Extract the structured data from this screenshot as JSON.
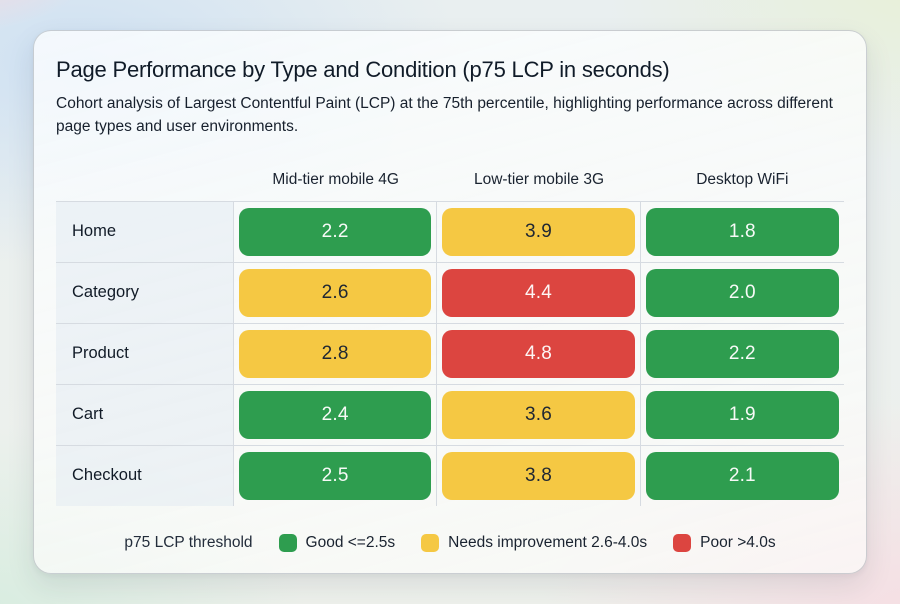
{
  "card": {
    "title": "Page Performance by Type and Condition (p75 LCP in seconds)",
    "subtitle": "Cohort analysis of Largest Contentful Paint (LCP) at the 75th percentile, highlighting performance across different page types and user environments."
  },
  "table": {
    "columns": [
      "Mid-tier mobile 4G",
      "Low-tier mobile 3G",
      "Desktop WiFi"
    ],
    "rows": [
      {
        "label": "Home",
        "values": [
          {
            "value": "2.2",
            "status": "good"
          },
          {
            "value": "3.9",
            "status": "warn"
          },
          {
            "value": "1.8",
            "status": "good"
          }
        ]
      },
      {
        "label": "Category",
        "values": [
          {
            "value": "2.6",
            "status": "warn"
          },
          {
            "value": "4.4",
            "status": "poor"
          },
          {
            "value": "2.0",
            "status": "good"
          }
        ]
      },
      {
        "label": "Product",
        "values": [
          {
            "value": "2.8",
            "status": "warn"
          },
          {
            "value": "4.8",
            "status": "poor"
          },
          {
            "value": "2.2",
            "status": "good"
          }
        ]
      },
      {
        "label": "Cart",
        "values": [
          {
            "value": "2.4",
            "status": "good"
          },
          {
            "value": "3.6",
            "status": "warn"
          },
          {
            "value": "1.9",
            "status": "good"
          }
        ]
      },
      {
        "label": "Checkout",
        "values": [
          {
            "value": "2.5",
            "status": "good"
          },
          {
            "value": "3.8",
            "status": "warn"
          },
          {
            "value": "2.1",
            "status": "good"
          }
        ]
      }
    ]
  },
  "legend": {
    "title": "p75 LCP threshold",
    "items": [
      {
        "label": "Good <=2.5s",
        "status": "good"
      },
      {
        "label": "Needs improvement 2.6-4.0s",
        "status": "warn"
      },
      {
        "label": "Poor >4.0s",
        "status": "poor"
      }
    ]
  },
  "colors": {
    "good": "#2e9d4f",
    "good_text": "#f7faf7",
    "warn": "#f5c843",
    "warn_text": "#1f2733",
    "poor": "#dc4540",
    "poor_text": "#fdf5f4"
  },
  "chart_data": {
    "type": "heatmap",
    "title": "Page Performance by Type and Condition (p75 LCP in seconds)",
    "columns": [
      "Mid-tier mobile 4G",
      "Low-tier mobile 3G",
      "Desktop WiFi"
    ],
    "rows": [
      "Home",
      "Category",
      "Product",
      "Cart",
      "Checkout"
    ],
    "values": [
      [
        2.2,
        3.9,
        1.8
      ],
      [
        2.6,
        4.4,
        2.0
      ],
      [
        2.8,
        4.8,
        2.2
      ],
      [
        2.4,
        3.6,
        1.9
      ],
      [
        2.5,
        3.8,
        2.1
      ]
    ],
    "unit": "seconds",
    "legend_position": "bottom",
    "thresholds": {
      "good": "<=2.5s",
      "needs_improvement": "2.6-4.0s",
      "poor": ">4.0s"
    }
  }
}
